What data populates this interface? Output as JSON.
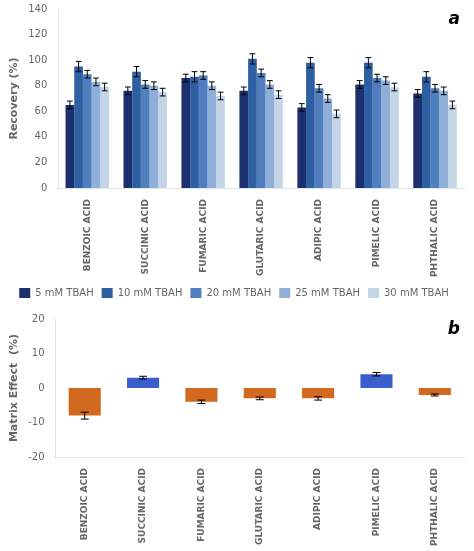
{
  "chart_data": [
    {
      "type": "bar",
      "categories": [
        "BENZOIC ACID",
        "SUCCINIC ACID",
        "FUMARIC ACID",
        "GLUTARIC ACID",
        "ADIPIC ACID",
        "PIMELIC ACID",
        "PHTHALIC ACID"
      ],
      "series": [
        {
          "name": "5 mM TBAH",
          "color": "#1c2f6e",
          "values": [
            65,
            76,
            86,
            76,
            63,
            81,
            74
          ],
          "errors": [
            3,
            3,
            3,
            3,
            3,
            3,
            3
          ]
        },
        {
          "name": "10 mM TBAH",
          "color": "#2e5fa3",
          "values": [
            95,
            91,
            87,
            101,
            98,
            98,
            87
          ],
          "errors": [
            4,
            4,
            4,
            4,
            4,
            4,
            4
          ]
        },
        {
          "name": "20 mM TBAH",
          "color": "#4f7fbf",
          "values": [
            89,
            81,
            88,
            90,
            78,
            86,
            78
          ],
          "errors": [
            3,
            3,
            3,
            3,
            3,
            3,
            3
          ]
        },
        {
          "name": "25 mM TBAH",
          "color": "#8fafd8",
          "values": [
            83,
            80,
            80,
            81,
            70,
            84,
            76
          ],
          "errors": [
            3,
            3,
            3,
            3,
            3,
            3,
            3
          ]
        },
        {
          "name": "30 mM TBAH",
          "color": "#c5d5e8",
          "values": [
            79,
            75,
            72,
            73,
            58,
            79,
            65
          ],
          "errors": [
            3,
            3,
            3,
            3,
            3,
            3,
            3
          ]
        }
      ],
      "ylabel": "Recovery (%)",
      "ylim": [
        0,
        140
      ],
      "yticks": [
        0,
        20,
        40,
        60,
        80,
        100,
        120,
        140
      ],
      "annotations": [
        "a"
      ],
      "legend": "bottom",
      "grid": false
    },
    {
      "type": "bar",
      "categories": [
        "BENZOIC ACID",
        "SUCCINIC ACID",
        "FUMARIC ACID",
        "GLUTARIC ACID",
        "ADIPIC ACID",
        "PIMELIC ACID",
        "PHTHALIC ACID"
      ],
      "values": [
        -8,
        3,
        -4,
        -3,
        -3,
        4,
        -2
      ],
      "colors": [
        "#d2691e",
        "#3a5fcd",
        "#d2691e",
        "#d2691e",
        "#d2691e",
        "#3a5fcd",
        "#d2691e"
      ],
      "errors": [
        1.0,
        0.4,
        0.5,
        0.4,
        0.5,
        0.5,
        0.3
      ],
      "ylabel": "Matrix Effect  (%)",
      "ylim": [
        -20,
        20
      ],
      "yticks": [
        -20,
        -10,
        0,
        10,
        20
      ],
      "annotations": [
        "b"
      ],
      "grid": false
    }
  ]
}
